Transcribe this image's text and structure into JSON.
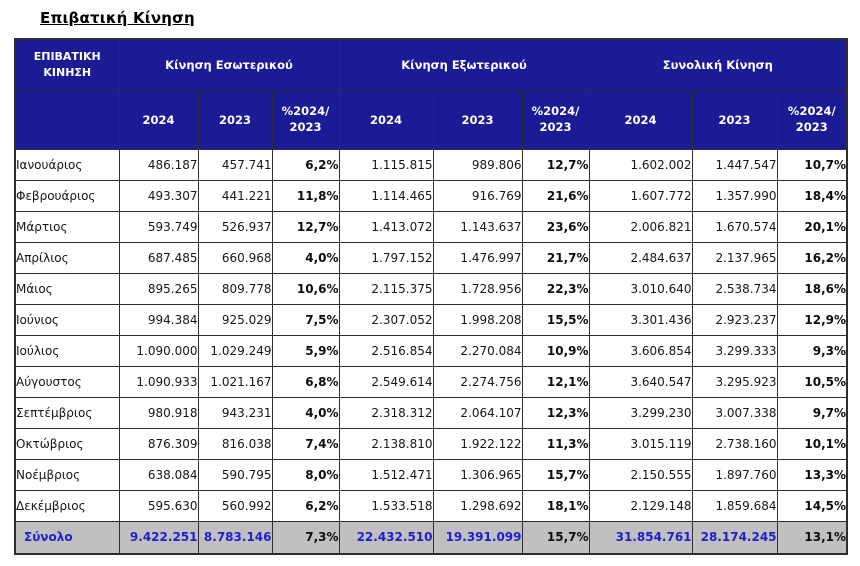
{
  "page_title": "Επιβατική Κίνηση",
  "colors": {
    "header_bg": "#1b1b96",
    "header_text": "#ffffff",
    "total_row_bg": "#c0c0c0",
    "total_row_text": "#1f1fcc",
    "grid_border": "#2e2e2e"
  },
  "table": {
    "corner_header": "ΕΠΙΒΑΤΙΚΗ ΚΙΝΗΣΗ",
    "group_headers": [
      "Κίνηση Εσωτερικού",
      "Κίνηση Εξωτερικού",
      "Συνολική Κίνηση"
    ],
    "sub_headers": {
      "y2024": "2024",
      "y2023": "2023",
      "pct_line1": "%2024/",
      "pct_line2": "2023"
    },
    "rows": [
      {
        "month": "Ιανουάριος",
        "cells": [
          "486.187",
          "457.741",
          "6,2%",
          "1.115.815",
          "989.806",
          "12,7%",
          "1.602.002",
          "1.447.547",
          "10,7%"
        ]
      },
      {
        "month": "Φεβρουάριος",
        "cells": [
          "493.307",
          "441.221",
          "11,8%",
          "1.114.465",
          "916.769",
          "21,6%",
          "1.607.772",
          "1.357.990",
          "18,4%"
        ]
      },
      {
        "month": "Μάρτιος",
        "cells": [
          "593.749",
          "526.937",
          "12,7%",
          "1.413.072",
          "1.143.637",
          "23,6%",
          "2.006.821",
          "1.670.574",
          "20,1%"
        ]
      },
      {
        "month": "Απρίλιος",
        "cells": [
          "687.485",
          "660.968",
          "4,0%",
          "1.797.152",
          "1.476.997",
          "21,7%",
          "2.484.637",
          "2.137.965",
          "16,2%"
        ]
      },
      {
        "month": "Μάιος",
        "cells": [
          "895.265",
          "809.778",
          "10,6%",
          "2.115.375",
          "1.728.956",
          "22,3%",
          "3.010.640",
          "2.538.734",
          "18,6%"
        ]
      },
      {
        "month": "Ιούνιος",
        "cells": [
          "994.384",
          "925.029",
          "7,5%",
          "2.307.052",
          "1.998.208",
          "15,5%",
          "3.301.436",
          "2.923.237",
          "12,9%"
        ]
      },
      {
        "month": "Ιούλιος",
        "cells": [
          "1.090.000",
          "1.029.249",
          "5,9%",
          "2.516.854",
          "2.270.084",
          "10,9%",
          "3.606.854",
          "3.299.333",
          "9,3%"
        ]
      },
      {
        "month": "Αύγουστος",
        "cells": [
          "1.090.933",
          "1.021.167",
          "6,8%",
          "2.549.614",
          "2.274.756",
          "12,1%",
          "3.640.547",
          "3.295.923",
          "10,5%"
        ]
      },
      {
        "month": "Σεπτέμβριος",
        "cells": [
          "980.918",
          "943.231",
          "4,0%",
          "2.318.312",
          "2.064.107",
          "12,3%",
          "3.299.230",
          "3.007.338",
          "9,7%"
        ]
      },
      {
        "month": "Οκτώβριος",
        "cells": [
          "876.309",
          "816.038",
          "7,4%",
          "2.138.810",
          "1.922.122",
          "11,3%",
          "3.015.119",
          "2.738.160",
          "10,1%"
        ]
      },
      {
        "month": "Νοέμβριος",
        "cells": [
          "638.084",
          "590.795",
          "8,0%",
          "1.512.471",
          "1.306.965",
          "15,7%",
          "2.150.555",
          "1.897.760",
          "13,3%"
        ]
      },
      {
        "month": "Δεκέμβριος",
        "cells": [
          "595.630",
          "560.992",
          "6,2%",
          "1.533.518",
          "1.298.692",
          "18,1%",
          "2.129.148",
          "1.859.684",
          "14,5%"
        ]
      }
    ],
    "total_row": {
      "label": "Σύνολο",
      "cells": [
        "9.422.251",
        "8.783.146",
        "7,3%",
        "22.432.510",
        "19.391.099",
        "15,7%",
        "31.854.761",
        "28.174.245",
        "13,1%"
      ]
    }
  }
}
